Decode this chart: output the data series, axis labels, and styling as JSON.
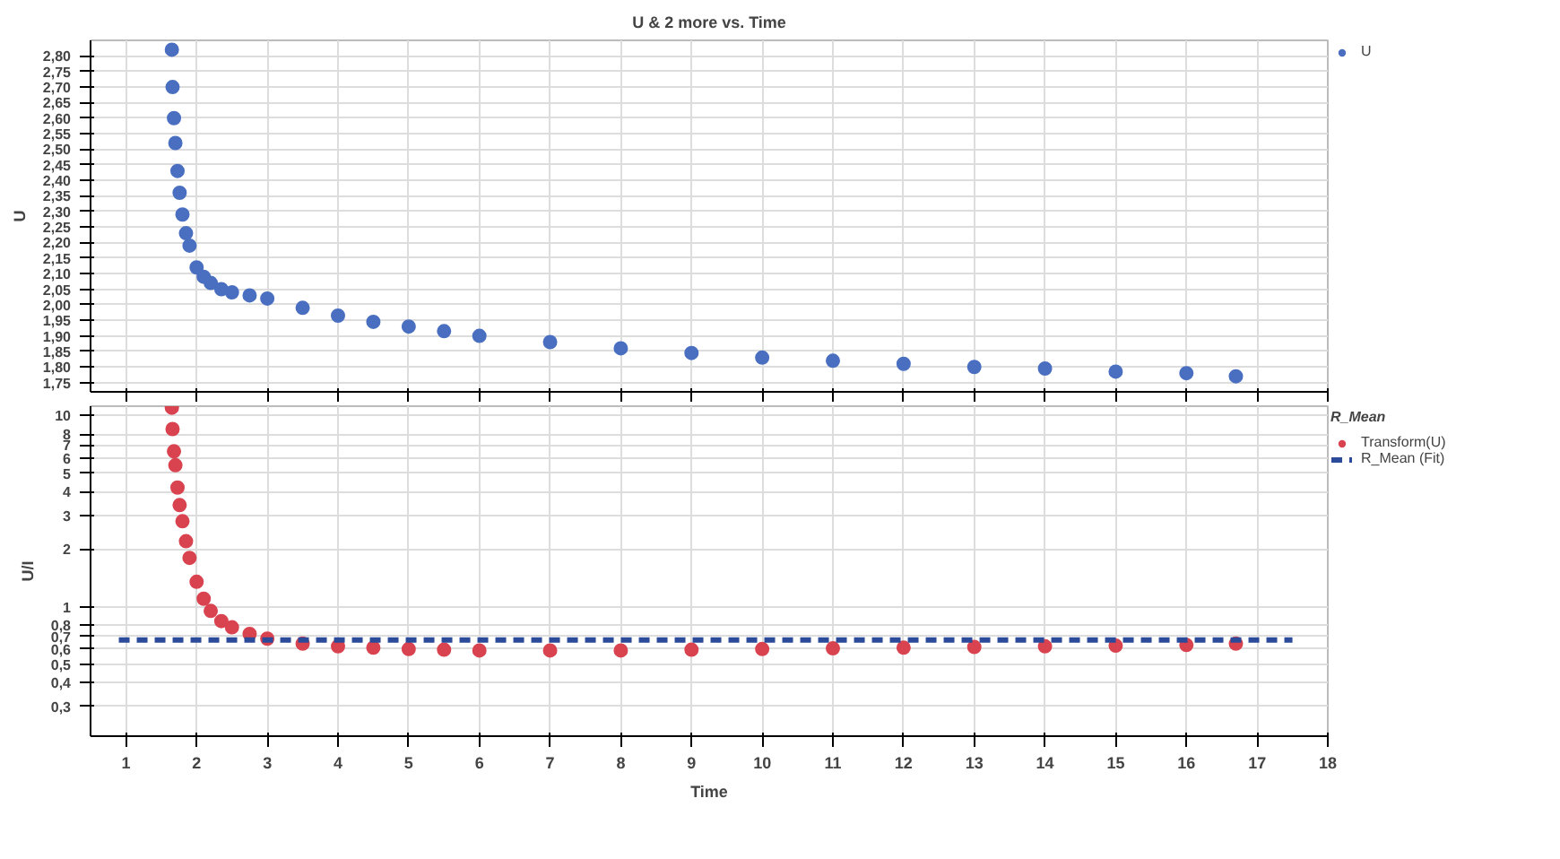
{
  "chart_data": [
    {
      "type": "scatter",
      "title": "U & 2 more vs. Time",
      "ylabel": "U",
      "marker": "circle",
      "grid": true,
      "legend": "right",
      "tick_labels": "y",
      "xlim": [
        0.5,
        18
      ],
      "xticks": [
        1,
        2,
        3,
        4,
        5,
        6,
        7,
        8,
        9,
        10,
        11,
        12,
        13,
        14,
        15,
        16,
        17,
        18
      ],
      "ylim": [
        1.72,
        2.85
      ],
      "yticks": [
        {
          "value": 1.75,
          "label": "1,75"
        },
        {
          "value": 1.8,
          "label": "1,80"
        },
        {
          "value": 1.85,
          "label": "1,85"
        },
        {
          "value": 1.9,
          "label": "1,90"
        },
        {
          "value": 1.95,
          "label": "1,95"
        },
        {
          "value": 2.0,
          "label": "2,00"
        },
        {
          "value": 2.05,
          "label": "2,05"
        },
        {
          "value": 2.1,
          "label": "2,10"
        },
        {
          "value": 2.15,
          "label": "2,15"
        },
        {
          "value": 2.2,
          "label": "2,20"
        },
        {
          "value": 2.25,
          "label": "2,25"
        },
        {
          "value": 2.3,
          "label": "2,30"
        },
        {
          "value": 2.35,
          "label": "2,35"
        },
        {
          "value": 2.4,
          "label": "2,40"
        },
        {
          "value": 2.45,
          "label": "2,45"
        },
        {
          "value": 2.5,
          "label": "2,50"
        },
        {
          "value": 2.55,
          "label": "2,55"
        },
        {
          "value": 2.6,
          "label": "2,60"
        },
        {
          "value": 2.65,
          "label": "2,65"
        },
        {
          "value": 2.7,
          "label": "2,70"
        },
        {
          "value": 2.75,
          "label": "2,75"
        },
        {
          "value": 2.8,
          "label": "2,80"
        }
      ],
      "x": [
        1.65,
        1.66,
        1.68,
        1.7,
        1.73,
        1.76,
        1.8,
        1.85,
        1.9,
        2.0,
        2.1,
        2.2,
        2.35,
        2.5,
        2.75,
        3.0,
        3.5,
        4.0,
        4.5,
        5.0,
        5.5,
        6.0,
        7.0,
        8.0,
        9.0,
        10.0,
        11.0,
        12.0,
        13.0,
        14.0,
        15.0,
        16.0,
        16.7
      ],
      "series": [
        {
          "name": "U",
          "color": "#4a6fc1",
          "values": [
            2.82,
            2.7,
            2.6,
            2.52,
            2.43,
            2.36,
            2.29,
            2.23,
            2.19,
            2.12,
            2.09,
            2.07,
            2.05,
            2.04,
            2.03,
            2.02,
            1.99,
            1.965,
            1.945,
            1.93,
            1.915,
            1.9,
            1.88,
            1.86,
            1.845,
            1.83,
            1.82,
            1.81,
            1.8,
            1.795,
            1.785,
            1.78,
            1.77
          ]
        }
      ]
    },
    {
      "type": "scatter",
      "xlabel": "Time",
      "ylabel": "U/I",
      "marker": "circle",
      "grid": true,
      "legend": "right",
      "log": "y",
      "legend_title": "R_Mean",
      "xlim": [
        0.5,
        18
      ],
      "xticks": [
        1,
        2,
        3,
        4,
        5,
        6,
        7,
        8,
        9,
        10,
        11,
        12,
        13,
        14,
        15,
        16,
        17,
        18
      ],
      "ylim": [
        0.21,
        11.2
      ],
      "yticks": [
        {
          "value": 0.3,
          "label": "0,3"
        },
        {
          "value": 0.4,
          "label": "0,4"
        },
        {
          "value": 0.5,
          "label": "0,5"
        },
        {
          "value": 0.6,
          "label": "0,6"
        },
        {
          "value": 0.7,
          "label": "0,7"
        },
        {
          "value": 0.8,
          "label": "0,8"
        },
        1,
        2,
        3,
        4,
        5,
        6,
        7,
        8,
        10
      ],
      "x": [
        1.65,
        1.66,
        1.68,
        1.7,
        1.73,
        1.76,
        1.8,
        1.85,
        1.9,
        2.0,
        2.1,
        2.2,
        2.35,
        2.5,
        2.75,
        3.0,
        3.5,
        4.0,
        4.5,
        5.0,
        5.5,
        6.0,
        7.0,
        8.0,
        9.0,
        10.0,
        11.0,
        12.0,
        13.0,
        14.0,
        15.0,
        16.0,
        16.7
      ],
      "series": [
        {
          "name": "Transform(U)",
          "color": "#d9434f",
          "values": [
            11,
            8.5,
            6.5,
            5.5,
            4.2,
            3.4,
            2.8,
            2.2,
            1.8,
            1.35,
            1.1,
            0.95,
            0.84,
            0.78,
            0.72,
            0.68,
            0.64,
            0.62,
            0.61,
            0.6,
            0.595,
            0.59,
            0.59,
            0.59,
            0.595,
            0.6,
            0.605,
            0.61,
            0.615,
            0.62,
            0.625,
            0.63,
            0.64
          ]
        },
        {
          "name": "R_Mean (Fit)",
          "type": "line",
          "marker": "none",
          "line_style": "dashed",
          "color": "#2b4a9a",
          "x": [
            0.9,
            17.5
          ],
          "values": [
            0.67,
            0.67
          ]
        }
      ]
    }
  ]
}
